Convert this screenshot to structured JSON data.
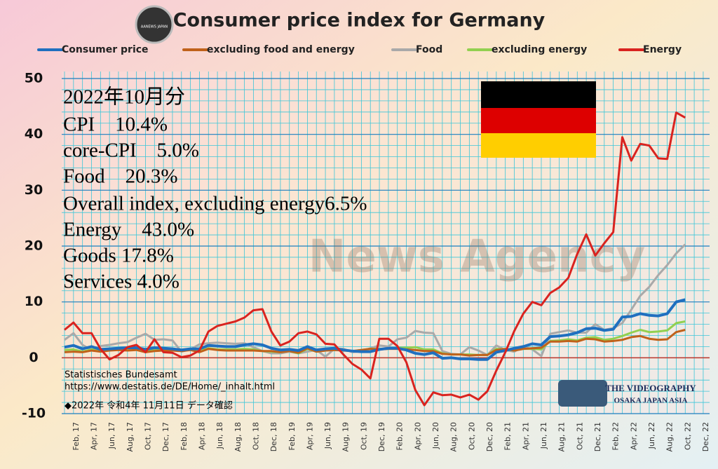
{
  "chart_data": {
    "type": "line",
    "title": "Consumer price index for Germany",
    "logo": "AANEWS JAPAN",
    "watermark": "News Agency",
    "badge": [
      "THE VIDEOGRAPHY",
      "OSAKA JAPAN ASIA"
    ],
    "annotations": [
      "2022年10月分",
      "CPI　10.4%",
      "core-CPI　5.0%",
      "Food　20.3%",
      "Overall index, excluding energy6.5%",
      "Energy　43.0%",
      "Goods 17.8%",
      "Services 4.0%"
    ],
    "source": [
      "Statistisches Bundesamt",
      "https://www.destatis.de/DE/Home/_inhalt.html",
      "◆2022年 令和4年 11月11日 データ確認"
    ],
    "legend": "top",
    "grid": true,
    "categories": [
      null,
      "Feb, 17",
      null,
      "Apr, 17",
      null,
      "Jun, 17",
      null,
      "Aug, 17",
      null,
      "Oct, 17",
      null,
      "Dec, 17",
      null,
      "Feb, 18",
      null,
      "Apr, 18",
      null,
      "Jun, 18",
      null,
      "Aug, 18",
      null,
      "Oct, 18",
      null,
      "Dec, 18",
      null,
      "Feb, 19",
      null,
      "Apr, 19",
      null,
      "Jun, 19",
      null,
      "Aug, 19",
      null,
      "Oct, 19",
      null,
      "Dec, 19",
      null,
      "Feb, 20",
      null,
      "Apr, 20",
      null,
      "Jun, 20",
      null,
      "Aug, 20",
      null,
      "Oct, 20",
      null,
      "Dec, 20",
      null,
      "Feb, 21",
      null,
      "Apr, 21",
      null,
      "Jun, 21",
      null,
      "Aug, 21",
      null,
      "Oct, 21",
      null,
      "Dec, 21",
      null,
      "Feb, 22",
      null,
      "Apr, 22",
      null,
      "Jun, 22",
      null,
      "Aug, 22",
      null,
      "Oct, 22",
      null,
      "Dec, 22"
    ],
    "ylim": [
      -10,
      50
    ],
    "yticks": [
      -10,
      0,
      10,
      20,
      30,
      40,
      50
    ],
    "series": [
      {
        "name": "Consumer price",
        "color": "#1f6fbf",
        "values": [
          1.9,
          2.2,
          1.6,
          2.0,
          1.5,
          1.6,
          1.7,
          1.8,
          1.8,
          1.5,
          1.8,
          1.7,
          1.6,
          1.4,
          1.6,
          1.6,
          2.2,
          2.1,
          2.0,
          2.0,
          2.3,
          2.5,
          2.3,
          1.7,
          1.4,
          1.5,
          1.3,
          2.0,
          1.4,
          1.6,
          1.7,
          1.4,
          1.2,
          1.1,
          1.1,
          1.5,
          1.7,
          1.7,
          1.4,
          0.8,
          0.6,
          0.9,
          -0.1,
          0.0,
          -0.2,
          -0.2,
          -0.3,
          -0.3,
          1.0,
          1.3,
          1.7,
          2.0,
          2.5,
          2.3,
          3.8,
          3.9,
          4.1,
          4.5,
          5.2,
          5.3,
          4.9,
          5.1,
          7.3,
          7.4,
          7.9,
          7.6,
          7.5,
          7.9,
          10.0,
          10.4,
          null,
          null
        ]
      },
      {
        "name": "excluding food and energy",
        "color": "#c0611a",
        "values": [
          1.0,
          1.1,
          1.0,
          1.3,
          1.1,
          1.3,
          1.4,
          1.3,
          1.4,
          1.0,
          1.2,
          1.3,
          1.3,
          1.2,
          1.4,
          1.0,
          1.6,
          1.4,
          1.3,
          1.3,
          1.3,
          1.3,
          1.2,
          1.2,
          1.0,
          1.2,
          0.9,
          1.7,
          1.1,
          1.3,
          1.4,
          1.3,
          1.2,
          1.4,
          1.6,
          1.5,
          1.6,
          1.6,
          1.5,
          1.4,
          1.2,
          1.2,
          0.7,
          0.6,
          0.6,
          0.4,
          0.5,
          0.5,
          1.4,
          1.6,
          1.3,
          1.6,
          1.7,
          1.8,
          2.9,
          2.9,
          3.0,
          2.9,
          3.4,
          3.3,
          2.9,
          3.0,
          3.2,
          3.7,
          3.9,
          3.4,
          3.2,
          3.3,
          4.6,
          5.0,
          null,
          null
        ]
      },
      {
        "name": "Food",
        "color": "#a9a9a9",
        "values": [
          3.2,
          4.4,
          2.3,
          1.4,
          2.1,
          2.3,
          2.6,
          2.8,
          3.6,
          4.3,
          3.2,
          3.3,
          3.1,
          1.1,
          1.5,
          2.4,
          2.6,
          2.7,
          2.6,
          2.5,
          2.6,
          1.9,
          1.2,
          0.8,
          0.8,
          1.1,
          0.8,
          1.1,
          1.4,
          0.2,
          1.6,
          1.6,
          1.0,
          1.2,
          1.7,
          2.2,
          2.0,
          3.3,
          3.6,
          4.8,
          4.5,
          4.4,
          1.2,
          0.7,
          0.6,
          1.9,
          1.3,
          0.5,
          2.2,
          1.4,
          1.1,
          2.0,
          1.5,
          0.3,
          4.3,
          4.6,
          4.9,
          4.5,
          4.5,
          6.0,
          5.0,
          5.3,
          6.2,
          8.6,
          11.1,
          12.7,
          14.8,
          16.6,
          18.7,
          20.3,
          null,
          null
        ]
      },
      {
        "name": "excluding energy",
        "color": "#92d050",
        "values": [
          1.4,
          1.5,
          1.1,
          1.5,
          1.3,
          1.5,
          1.6,
          1.6,
          1.6,
          1.3,
          1.5,
          1.5,
          1.5,
          1.2,
          1.5,
          1.2,
          1.7,
          1.5,
          1.5,
          1.5,
          1.6,
          1.5,
          1.2,
          1.1,
          1.0,
          1.2,
          0.8,
          1.6,
          1.1,
          1.3,
          1.4,
          1.4,
          1.2,
          1.4,
          1.6,
          1.6,
          1.6,
          1.8,
          1.8,
          1.9,
          1.5,
          1.5,
          0.8,
          0.6,
          0.6,
          0.6,
          0.5,
          0.5,
          1.6,
          1.5,
          1.3,
          1.6,
          1.6,
          1.5,
          3.0,
          3.1,
          3.3,
          3.1,
          3.6,
          3.7,
          3.2,
          3.4,
          3.9,
          4.5,
          5.0,
          4.6,
          4.7,
          4.9,
          6.2,
          6.5,
          null,
          null
        ]
      },
      {
        "name": "Energy",
        "color": "#d9231f",
        "values": [
          5.0,
          6.3,
          4.4,
          4.4,
          1.6,
          -0.3,
          0.5,
          1.9,
          2.3,
          1.0,
          3.3,
          1.0,
          0.9,
          0.1,
          0.4,
          1.3,
          4.7,
          5.7,
          6.1,
          6.5,
          7.2,
          8.5,
          8.7,
          4.7,
          2.2,
          2.9,
          4.4,
          4.7,
          4.2,
          2.5,
          2.4,
          0.6,
          -1.1,
          -2.1,
          -3.7,
          3.4,
          3.4,
          2.1,
          -0.8,
          -5.8,
          -8.5,
          -6.2,
          -6.7,
          -6.6,
          -7.1,
          -6.6,
          -7.5,
          -6.0,
          -2.3,
          1.0,
          4.8,
          7.9,
          10.0,
          9.4,
          11.6,
          12.6,
          14.3,
          18.6,
          22.1,
          18.3,
          20.5,
          22.5,
          39.5,
          35.3,
          38.3,
          38.0,
          35.7,
          35.6,
          43.9,
          43.0,
          null,
          null
        ]
      }
    ]
  }
}
